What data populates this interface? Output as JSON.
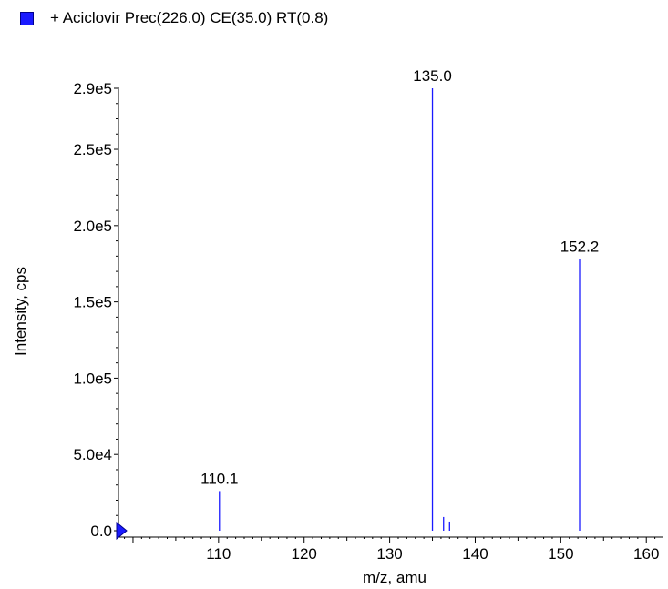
{
  "legend": {
    "label": "+ Aciclovir Prec(226.0) CE(35.0) RT(0.8)",
    "color": "#1a1aff"
  },
  "chart_data": {
    "type": "bar",
    "title": "",
    "xlabel": "m/z, amu",
    "ylabel": "Intensity, cps",
    "xlim": [
      98.3,
      162
    ],
    "ylim": [
      0,
      300000
    ],
    "xticks": [
      110,
      120,
      130,
      140,
      150,
      160
    ],
    "xtick_labels": [
      "110",
      "120",
      "130",
      "140",
      "150",
      "160"
    ],
    "yticks": [
      0,
      50000,
      100000,
      150000,
      200000,
      250000,
      290000
    ],
    "ytick_labels": [
      "0.0",
      "5.0e4",
      "1.0e5",
      "1.5e5",
      "2.0e5",
      "2.5e5",
      "2.9e5"
    ],
    "series": [
      {
        "color": "#1a1aff",
        "peaks": [
          {
            "mz": 110.1,
            "intensity": 26000,
            "label": "110.1"
          },
          {
            "mz": 135.0,
            "intensity": 290000,
            "label": "135.0"
          },
          {
            "mz": 136.3,
            "intensity": 9000,
            "label": ""
          },
          {
            "mz": 137.0,
            "intensity": 6000,
            "label": ""
          },
          {
            "mz": 152.2,
            "intensity": 178000,
            "label": "152.2"
          }
        ]
      }
    ],
    "grid": false,
    "legend_position": "top-left"
  }
}
